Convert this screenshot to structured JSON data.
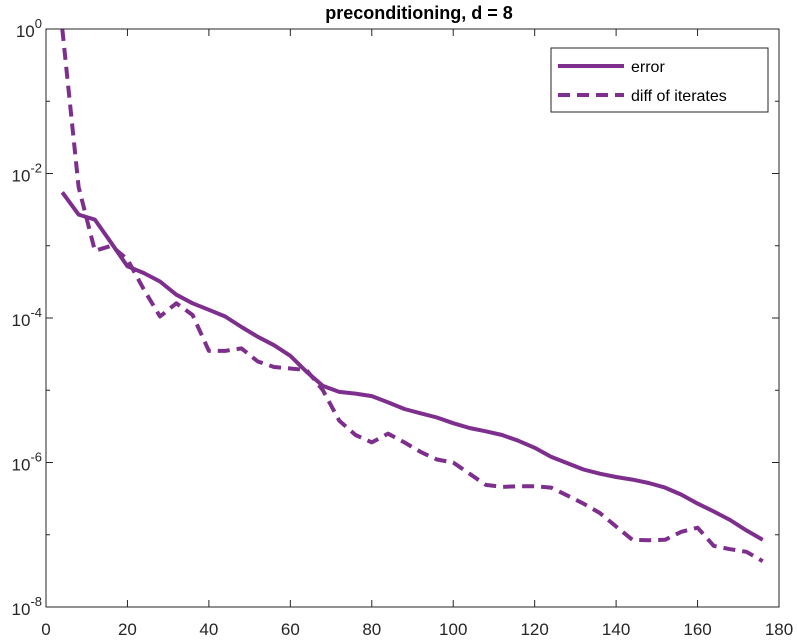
{
  "chart_data": {
    "type": "line",
    "title": "preconditioning, d = 8",
    "xlabel": "",
    "ylabel": "",
    "yscale": "log",
    "xlim": [
      0,
      180
    ],
    "ylim": [
      1e-08,
      1
    ],
    "x_ticks": [
      0,
      20,
      40,
      60,
      80,
      100,
      120,
      140,
      160,
      180
    ],
    "x_tick_labels": [
      "0",
      "20",
      "40",
      "60",
      "80",
      "100",
      "120",
      "140",
      "160",
      "180"
    ],
    "y_ticks": [
      1e-08,
      1e-06,
      0.0001,
      0.01,
      1
    ],
    "y_tick_labels": [
      {
        "base": "10",
        "exp": "-8"
      },
      {
        "base": "10",
        "exp": "-6"
      },
      {
        "base": "10",
        "exp": "-4"
      },
      {
        "base": "10",
        "exp": "-2"
      },
      {
        "base": "10",
        "exp": "0"
      }
    ],
    "grid": false,
    "legend_position": "top-right",
    "line_color": "#7E2F8E",
    "series": [
      {
        "name": "error",
        "style": "solid",
        "x": [
          4,
          8,
          12,
          16,
          20,
          24,
          28,
          32,
          36,
          40,
          44,
          48,
          52,
          56,
          60,
          64,
          68,
          72,
          76,
          80,
          84,
          88,
          92,
          96,
          100,
          104,
          108,
          112,
          116,
          120,
          124,
          128,
          132,
          136,
          140,
          144,
          148,
          152,
          156,
          160,
          164,
          168,
          172,
          176
        ],
        "y": [
          0.0055,
          0.0027,
          0.0023,
          0.0011,
          0.00052,
          0.00042,
          0.00032,
          0.00021,
          0.00016,
          0.00013,
          0.000105,
          7.5e-05,
          5.5e-05,
          4.2e-05,
          3e-05,
          1.8e-05,
          1.15e-05,
          9.5e-06,
          9e-06,
          8.3e-06,
          6.8e-06,
          5.5e-06,
          4.8e-06,
          4.2e-06,
          3.5e-06,
          3e-06,
          2.7e-06,
          2.4e-06,
          2e-06,
          1.6e-06,
          1.2e-06,
          9.8e-07,
          8e-07,
          7e-07,
          6.3e-07,
          5.8e-07,
          5.2e-07,
          4.5e-07,
          3.6e-07,
          2.7e-07,
          2.1e-07,
          1.6e-07,
          1.15e-07,
          8.5e-08
        ]
      },
      {
        "name": "diff of iterates",
        "style": "dashed",
        "x": [
          4,
          8,
          12,
          16,
          20,
          24,
          28,
          32,
          36,
          40,
          44,
          48,
          52,
          56,
          60,
          64,
          68,
          72,
          76,
          80,
          84,
          88,
          92,
          96,
          100,
          104,
          108,
          112,
          116,
          120,
          124,
          128,
          132,
          136,
          140,
          144,
          148,
          152,
          156,
          160,
          164,
          168,
          172,
          176
        ],
        "y": [
          1.0,
          0.0065,
          0.00085,
          0.001,
          0.00065,
          0.00025,
          0.000105,
          0.00016,
          0.00011,
          3.5e-05,
          3.5e-05,
          3.8e-05,
          2.5e-05,
          2.1e-05,
          2e-05,
          1.9e-05,
          1e-05,
          3.8e-06,
          2.4e-06,
          1.9e-06,
          2.5e-06,
          1.9e-06,
          1.4e-06,
          1.1e-06,
          1e-06,
          7e-07,
          4.9e-07,
          4.6e-07,
          4.7e-07,
          4.7e-07,
          4.5e-07,
          3.5e-07,
          2.7e-07,
          2e-07,
          1.3e-07,
          8.5e-08,
          8.4e-08,
          8.5e-08,
          1.1e-07,
          1.25e-07,
          7e-08,
          6.3e-08,
          5.8e-08,
          4.3e-08
        ]
      }
    ]
  }
}
